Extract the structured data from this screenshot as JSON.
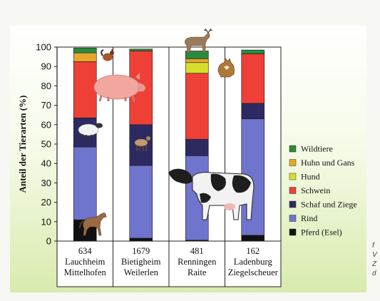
{
  "chart_data": {
    "type": "bar",
    "stacked": true,
    "ylabel": "Anteil der Tierarten (%)",
    "ylim": [
      0,
      100
    ],
    "yticks": [
      0,
      10,
      20,
      30,
      40,
      50,
      60,
      70,
      80,
      90,
      100
    ],
    "grid": false,
    "legend_position": "right",
    "categories": [
      {
        "count": "634",
        "line1": "Lauchheim",
        "line2": "Mittelhofen"
      },
      {
        "count": "1679",
        "line1": "Bietigheim",
        "line2": "Weilerlen"
      },
      {
        "count": "481",
        "line1": "Renningen",
        "line2": "Raite"
      },
      {
        "count": "162",
        "line1": "Ladenburg",
        "line2": "Ziegelscheuer"
      }
    ],
    "series": [
      {
        "name": "Pferd (Esel)",
        "color": "#111111",
        "values": [
          11,
          1.5,
          0.5,
          3
        ]
      },
      {
        "name": "Rind",
        "color": "#6f74cc",
        "values": [
          37.5,
          37.5,
          43.5,
          60
        ]
      },
      {
        "name": "Schaf und Ziege",
        "color": "#2d2a62",
        "values": [
          15,
          21,
          8.5,
          8
        ]
      },
      {
        "name": "Schwein",
        "color": "#ee4037",
        "values": [
          29,
          38,
          34,
          25.5
        ]
      },
      {
        "name": "Hund",
        "color": "#d6df2c",
        "values": [
          0,
          0,
          5.5,
          0
        ]
      },
      {
        "name": "Huhn und Gans",
        "color": "#e8a72c",
        "values": [
          4.5,
          0,
          2,
          0
        ]
      },
      {
        "name": "Wildtiere",
        "color": "#2a8a3c",
        "values": [
          2.5,
          1,
          4,
          2
        ]
      }
    ]
  },
  "icons": [
    "horse-icon",
    "sheep-icon",
    "pig-icon",
    "rooster-icon",
    "goat-icon",
    "deer-icon",
    "dog-icon",
    "cow-icon"
  ],
  "edge_fragment": "f V Z d"
}
